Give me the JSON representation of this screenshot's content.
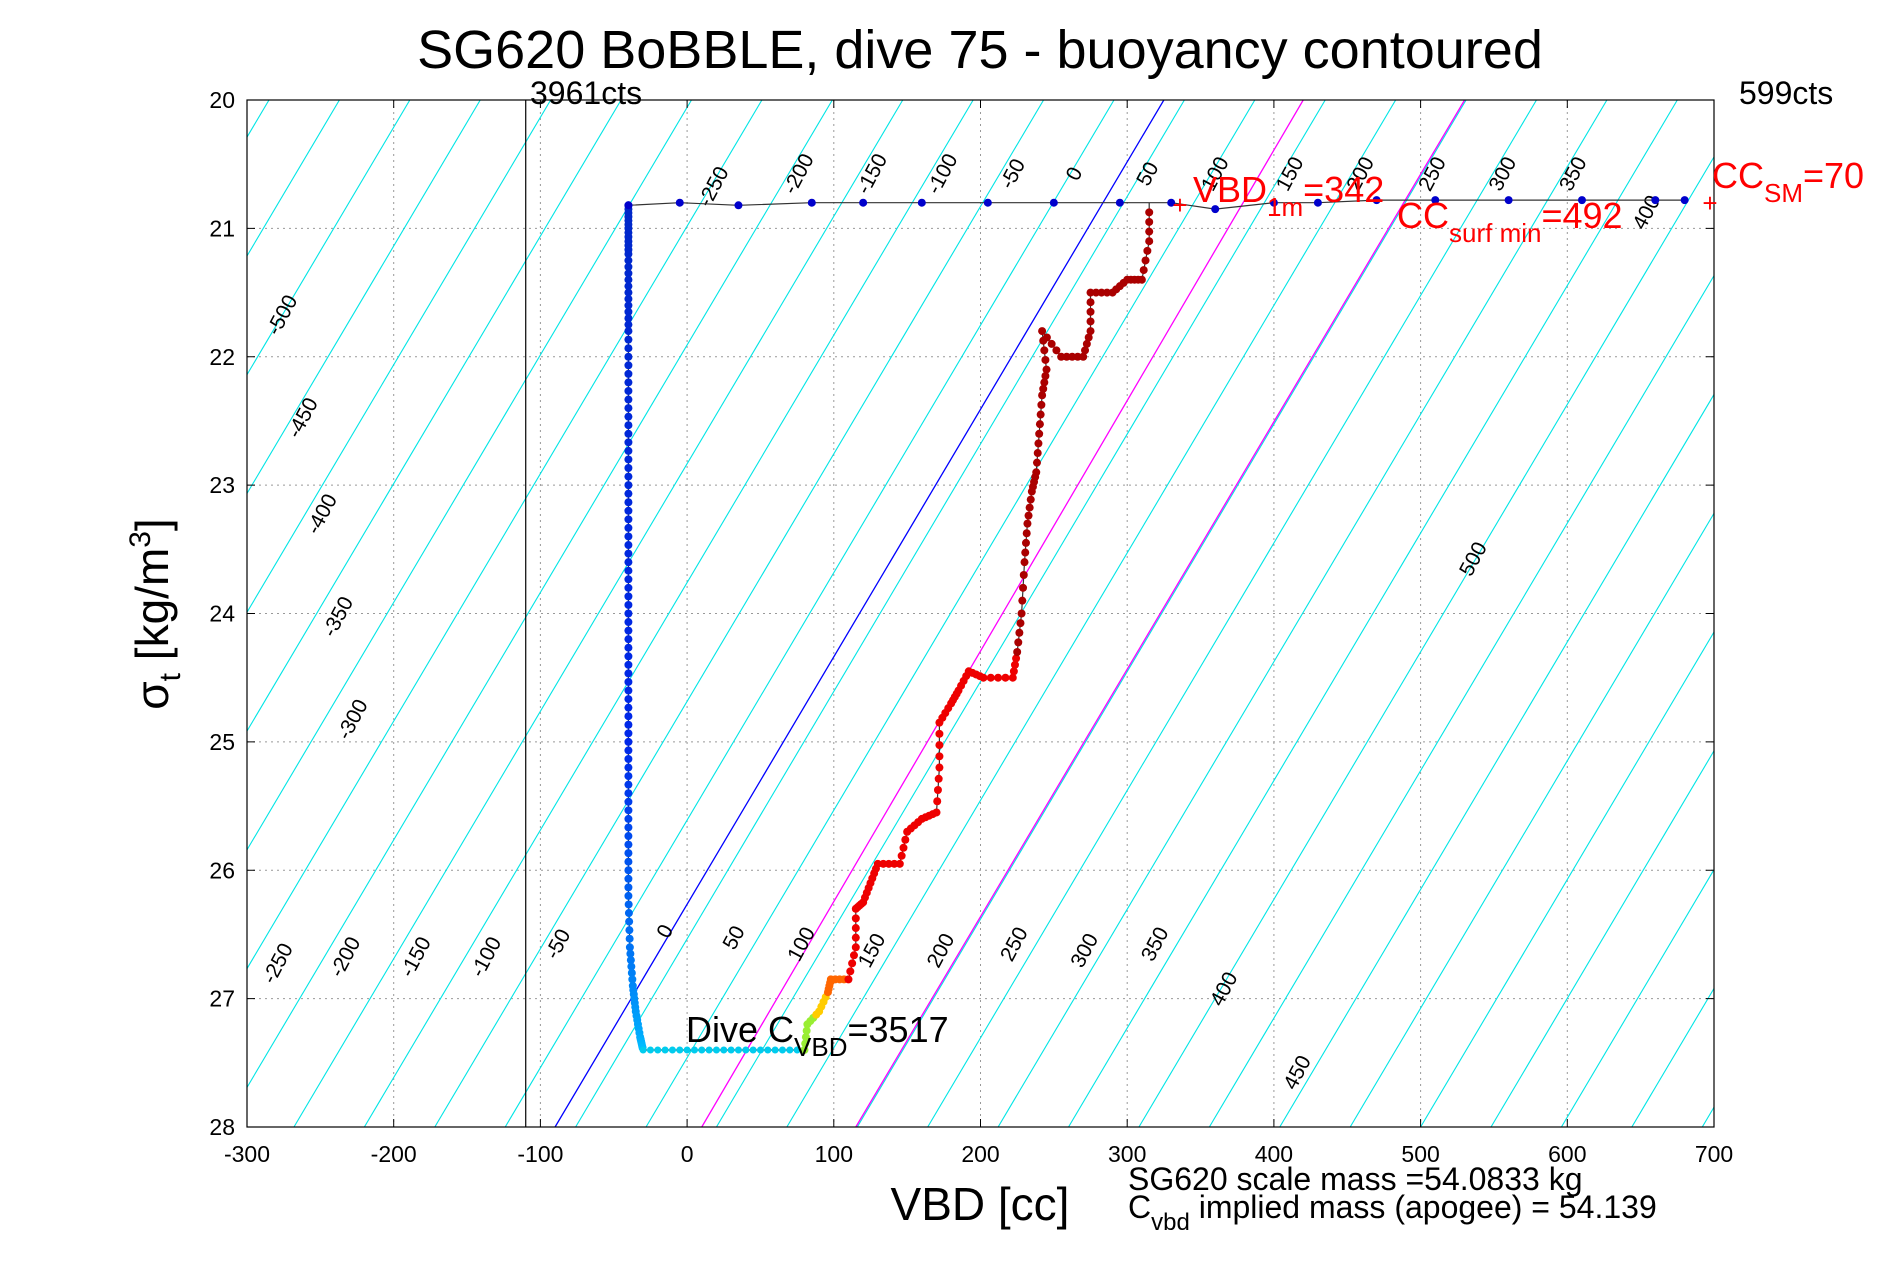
{
  "chart_data": {
    "type": "scatter",
    "title": "SG620 BoBBLE, dive 75 - buoyancy contoured",
    "xlabel": "VBD [cc]",
    "ylabel_main": "σ",
    "ylabel_sub": "t",
    "ylabel_tail": " [kg/m",
    "ylabel_sup": "3",
    "ylabel_end": "]",
    "xlim": [
      -300,
      700
    ],
    "ylim": [
      20,
      28
    ],
    "y_reversed": true,
    "grid": true,
    "x_ticks": [
      "-300",
      "-200",
      "-100",
      "0",
      "100",
      "200",
      "300",
      "400",
      "500",
      "600",
      "700"
    ],
    "y_ticks": [
      "20",
      "21",
      "22",
      "23",
      "24",
      "25",
      "26",
      "27",
      "28"
    ],
    "contour_slope_cc_per_unit": 34.6,
    "contours_top": [
      {
        "label": "-250",
        "at": [
          22,
          20.7
        ]
      },
      {
        "label": "-200",
        "at": [
          80,
          20.6
        ]
      },
      {
        "label": "-150",
        "at": [
          130,
          20.6
        ]
      },
      {
        "label": "-100",
        "at": [
          178,
          20.6
        ]
      },
      {
        "label": "-50",
        "at": [
          226,
          20.6
        ]
      },
      {
        "label": "0",
        "at": [
          268,
          20.6
        ]
      },
      {
        "label": "50",
        "at": [
          318,
          20.6
        ]
      },
      {
        "label": "100",
        "at": [
          364,
          20.6
        ]
      },
      {
        "label": "150",
        "at": [
          415,
          20.6
        ]
      },
      {
        "label": "200",
        "at": [
          463,
          20.6
        ]
      },
      {
        "label": "250",
        "at": [
          512,
          20.6
        ]
      },
      {
        "label": "300",
        "at": [
          560,
          20.6
        ]
      },
      {
        "label": "350",
        "at": [
          608,
          20.6
        ]
      },
      {
        "label": "400",
        "at": [
          658,
          20.9
        ]
      }
    ],
    "contours_left": [
      {
        "label": "-500",
        "at": [
          -272,
          21.7
        ]
      },
      {
        "label": "-450",
        "at": [
          -258,
          22.5
        ]
      },
      {
        "label": "-400",
        "at": [
          -245,
          23.25
        ]
      },
      {
        "label": "-350",
        "at": [
          -234,
          24.05
        ]
      },
      {
        "label": "-300",
        "at": [
          -224,
          24.85
        ]
      }
    ],
    "contours_bottom": [
      {
        "label": "-250",
        "at": [
          -275,
          26.75
        ]
      },
      {
        "label": "-200",
        "at": [
          -229,
          26.7
        ]
      },
      {
        "label": "-150",
        "at": [
          -181,
          26.7
        ]
      },
      {
        "label": "-100",
        "at": [
          -133,
          26.7
        ]
      },
      {
        "label": "-50",
        "at": [
          -84,
          26.6
        ]
      },
      {
        "label": "0",
        "at": [
          -11,
          26.5
        ]
      },
      {
        "label": "50",
        "at": [
          36,
          26.55
        ]
      },
      {
        "label": "100",
        "at": [
          82,
          26.6
        ]
      },
      {
        "label": "150",
        "at": [
          130,
          26.65
        ]
      },
      {
        "label": "200",
        "at": [
          177,
          26.65
        ]
      },
      {
        "label": "250",
        "at": [
          227,
          26.6
        ]
      },
      {
        "label": "300",
        "at": [
          275,
          26.65
        ]
      },
      {
        "label": "350",
        "at": [
          323,
          26.6
        ]
      },
      {
        "label": "400",
        "at": [
          370,
          26.95
        ]
      },
      {
        "label": "450",
        "at": [
          420,
          27.6
        ]
      },
      {
        "label": "500",
        "at": [
          540,
          23.6
        ]
      }
    ],
    "reference_lines": [
      {
        "name": "vbd-zero-line",
        "color": "#0000ff",
        "x_at_top": 325,
        "x_at_bottom": -90
      },
      {
        "name": "magenta-line-1",
        "color": "#ff00ff",
        "x_at_top": 420,
        "x_at_bottom": 10
      },
      {
        "name": "magenta-line-2",
        "color": "#ff00ff",
        "x_at_top": 530,
        "x_at_bottom": 115
      }
    ],
    "vertical_line_x": -110,
    "counts_left": "3961cts",
    "counts_right": "599cts",
    "series": [
      {
        "points_dive": [
          [
            -40,
            20.82
          ],
          [
            -40,
            21.0
          ],
          [
            -40,
            21.2
          ],
          [
            -40,
            21.5
          ],
          [
            -40,
            21.8
          ],
          [
            -40,
            22.2
          ],
          [
            -40,
            22.6
          ],
          [
            -40,
            23.0
          ],
          [
            -40,
            23.4
          ],
          [
            -40,
            23.8
          ],
          [
            -40,
            24.2
          ],
          [
            -40,
            24.6
          ],
          [
            -40,
            25.0
          ],
          [
            -40,
            25.4
          ],
          [
            -40,
            25.8
          ],
          [
            -40,
            26.2
          ],
          [
            -39,
            26.6
          ],
          [
            -37,
            26.9
          ],
          [
            -35,
            27.1
          ],
          [
            -32,
            27.3
          ],
          [
            -30,
            27.4
          ]
        ],
        "points_bottom": [
          [
            -30,
            27.4
          ],
          [
            0,
            27.4
          ],
          [
            30,
            27.4
          ],
          [
            60,
            27.4
          ],
          [
            80,
            27.4
          ]
        ],
        "points_climb": [
          [
            80,
            27.4
          ],
          [
            82,
            27.2
          ],
          [
            90,
            27.1
          ],
          [
            96,
            26.95
          ],
          [
            98,
            26.85
          ],
          [
            110,
            26.85
          ],
          [
            115,
            26.6
          ],
          [
            115,
            26.3
          ],
          [
            120,
            26.25
          ],
          [
            125,
            26.1
          ],
          [
            130,
            25.95
          ],
          [
            145,
            25.95
          ],
          [
            150,
            25.7
          ],
          [
            160,
            25.6
          ],
          [
            170,
            25.55
          ],
          [
            172,
            25.2
          ],
          [
            172,
            24.85
          ],
          [
            180,
            24.7
          ],
          [
            185,
            24.6
          ],
          [
            192,
            24.45
          ],
          [
            202,
            24.5
          ],
          [
            222,
            24.5
          ],
          [
            225,
            24.3
          ],
          [
            228,
            24.0
          ],
          [
            230,
            23.6
          ],
          [
            232,
            23.3
          ],
          [
            235,
            23.05
          ],
          [
            238,
            22.9
          ],
          [
            240,
            22.6
          ],
          [
            242,
            22.3
          ],
          [
            245,
            22.1
          ],
          [
            242,
            21.8
          ],
          [
            255,
            22.0
          ],
          [
            270,
            22.0
          ],
          [
            275,
            21.8
          ],
          [
            275,
            21.5
          ],
          [
            290,
            21.5
          ],
          [
            300,
            21.4
          ],
          [
            310,
            21.4
          ],
          [
            315,
            21.1
          ],
          [
            315,
            20.8
          ]
        ],
        "points_surface": [
          [
            -40,
            20.82
          ],
          [
            -5,
            20.8
          ],
          [
            35,
            20.82
          ],
          [
            85,
            20.8
          ],
          [
            120,
            20.8
          ],
          [
            160,
            20.8
          ],
          [
            205,
            20.8
          ],
          [
            250,
            20.8
          ],
          [
            295,
            20.8
          ],
          [
            330,
            20.8
          ],
          [
            360,
            20.85
          ],
          [
            400,
            20.8
          ],
          [
            430,
            20.8
          ],
          [
            470,
            20.78
          ],
          [
            510,
            20.78
          ],
          [
            560,
            20.78
          ],
          [
            610,
            20.78
          ],
          [
            660,
            20.78
          ],
          [
            680,
            20.78
          ]
        ]
      }
    ]
  },
  "annotations": {
    "vbd1m_main": "VBD",
    "vbd1m_sub": "1m",
    "vbd1m_val": "=342",
    "ccsurf_main": "CC",
    "ccsurf_sub": "surf min",
    "ccsurf_val": "=492",
    "ccsm_main": "CC",
    "ccsm_sub": "SM",
    "ccsm_val": "=70",
    "divec_main": "Dive C",
    "divec_sub": "VBD",
    "divec_val": "=3517",
    "footer_line1": "SG620 scale mass =54.0833 kg",
    "footer_line2_main": "C",
    "footer_line2_sub": "vbd",
    "footer_line2_rest": " implied mass (apogee) = 54.139"
  },
  "colors": {
    "contour": "#00e5e5",
    "grid": "#888888",
    "dive_points": "#0000cc",
    "climb_points": "#aa0000",
    "bottom_points": "#00ccee",
    "annotation": "#ff0000"
  }
}
